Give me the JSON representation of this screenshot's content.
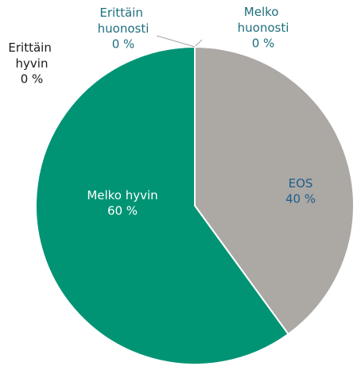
{
  "chart_data": {
    "type": "pie",
    "categories": [
      "Melko huonosti",
      "EOS",
      "Melko hyvin",
      "Erittäin hyvin",
      "Erittäin huonosti"
    ],
    "values": [
      0,
      40,
      60,
      0,
      0
    ],
    "value_labels": [
      "0 %",
      "40 %",
      "60 %",
      "0 %",
      "0 %"
    ],
    "colors": [
      "#1f6f8b",
      "#aca8a4",
      "#009474",
      "#1c3f5e",
      "#5a9e8a"
    ],
    "label_colors": [
      "#1f6f7e",
      "#1f5f8c",
      "#ffffff",
      "#1a1a1a",
      "#1f6f7e"
    ]
  }
}
